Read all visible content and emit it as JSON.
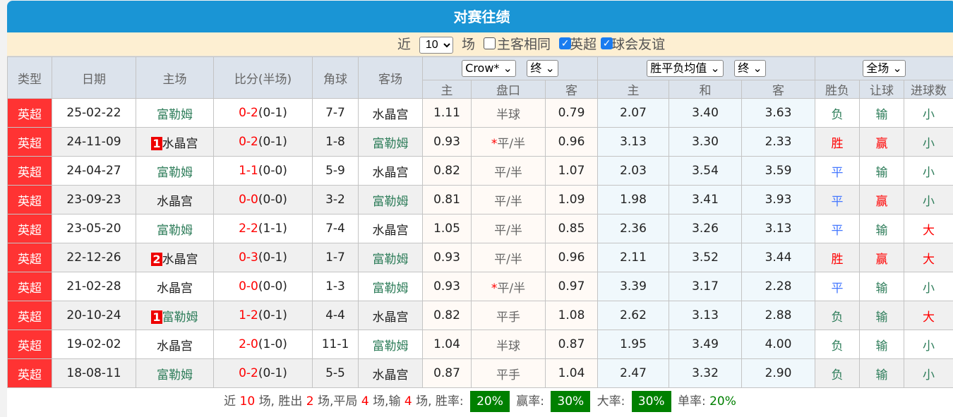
{
  "title": "对赛往绩",
  "filter": {
    "near": "近",
    "count": "10",
    "unit": "场",
    "same_home": "主客相同",
    "same_home_checked": false,
    "league": "英超",
    "league_checked": true,
    "friendly": "球会友谊",
    "friendly_checked": true
  },
  "header": {
    "type": "类型",
    "date": "日期",
    "home": "主场",
    "score": "比分(半场)",
    "corner": "角球",
    "away": "客场",
    "company_select": "Crow*",
    "hc_stage_select": "终",
    "odds_select": "胜平负均值",
    "odds_stage_select": "终",
    "period_select": "全场",
    "hc_home": "主",
    "hc_line": "盘口",
    "hc_away": "客",
    "od_home": "主",
    "od_draw": "和",
    "od_away": "客",
    "res_wl": "胜负",
    "res_hc": "让球",
    "res_goals": "进球数"
  },
  "rows": [
    {
      "type": "英超",
      "date": "25-02-22",
      "home": "富勒姆",
      "home_rank": "",
      "score": "0-2",
      "half": "(0-1)",
      "corner": "7-7",
      "away": "水晶宫",
      "h": "1.11",
      "line": "半球",
      "star": "",
      "a": "0.79",
      "o1": "2.07",
      "ox": "3.40",
      "o2": "3.63",
      "wl": "负",
      "hc": "输",
      "g": "小"
    },
    {
      "type": "英超",
      "date": "24-11-09",
      "home": "水晶宫",
      "home_rank": "1",
      "score": "0-2",
      "half": "(0-1)",
      "corner": "1-8",
      "away": "富勒姆",
      "h": "0.93",
      "line": "平/半",
      "star": "*",
      "a": "0.96",
      "o1": "3.13",
      "ox": "3.30",
      "o2": "2.33",
      "wl": "胜",
      "hc": "赢",
      "g": "小"
    },
    {
      "type": "英超",
      "date": "24-04-27",
      "home": "富勒姆",
      "home_rank": "",
      "score": "1-1",
      "half": "(0-0)",
      "corner": "5-9",
      "away": "水晶宫",
      "h": "0.82",
      "line": "平/半",
      "star": "",
      "a": "1.07",
      "o1": "2.03",
      "ox": "3.54",
      "o2": "3.59",
      "wl": "平",
      "hc": "输",
      "g": "小"
    },
    {
      "type": "英超",
      "date": "23-09-23",
      "home": "水晶宫",
      "home_rank": "",
      "score": "0-0",
      "half": "(0-0)",
      "corner": "3-2",
      "away": "富勒姆",
      "h": "0.81",
      "line": "平/半",
      "star": "",
      "a": "1.09",
      "o1": "1.98",
      "ox": "3.41",
      "o2": "3.93",
      "wl": "平",
      "hc": "赢",
      "g": "小"
    },
    {
      "type": "英超",
      "date": "23-05-20",
      "home": "富勒姆",
      "home_rank": "",
      "score": "2-2",
      "half": "(1-1)",
      "corner": "7-4",
      "away": "水晶宫",
      "h": "1.05",
      "line": "平/半",
      "star": "",
      "a": "0.85",
      "o1": "2.36",
      "ox": "3.26",
      "o2": "3.13",
      "wl": "平",
      "hc": "输",
      "g": "大"
    },
    {
      "type": "英超",
      "date": "22-12-26",
      "home": "水晶宫",
      "home_rank": "2",
      "score": "0-3",
      "half": "(0-1)",
      "corner": "1-7",
      "away": "富勒姆",
      "h": "0.93",
      "line": "平/半",
      "star": "",
      "a": "0.96",
      "o1": "2.11",
      "ox": "3.52",
      "o2": "3.44",
      "wl": "胜",
      "hc": "赢",
      "g": "大"
    },
    {
      "type": "英超",
      "date": "21-02-28",
      "home": "水晶宫",
      "home_rank": "",
      "score": "0-0",
      "half": "(0-0)",
      "corner": "1-3",
      "away": "富勒姆",
      "h": "0.93",
      "line": "平/半",
      "star": "*",
      "a": "0.97",
      "o1": "3.39",
      "ox": "3.17",
      "o2": "2.28",
      "wl": "平",
      "hc": "输",
      "g": "小"
    },
    {
      "type": "英超",
      "date": "20-10-24",
      "home": "富勒姆",
      "home_rank": "1",
      "score": "1-2",
      "half": "(0-1)",
      "corner": "4-4",
      "away": "水晶宫",
      "h": "0.82",
      "line": "平手",
      "star": "",
      "a": "1.08",
      "o1": "2.62",
      "ox": "3.13",
      "o2": "2.88",
      "wl": "负",
      "hc": "输",
      "g": "大"
    },
    {
      "type": "英超",
      "date": "19-02-02",
      "home": "水晶宫",
      "home_rank": "",
      "score": "2-0",
      "half": "(1-0)",
      "corner": "11-1",
      "away": "富勒姆",
      "h": "1.04",
      "line": "半球",
      "star": "",
      "a": "0.87",
      "o1": "1.95",
      "ox": "3.49",
      "o2": "4.00",
      "wl": "负",
      "hc": "输",
      "g": "小"
    },
    {
      "type": "英超",
      "date": "18-08-11",
      "home": "富勒姆",
      "home_rank": "",
      "score": "0-2",
      "half": "(0-1)",
      "corner": "5-5",
      "away": "水晶宫",
      "h": "0.87",
      "line": "平手",
      "star": "",
      "a": "1.04",
      "o1": "2.47",
      "ox": "3.32",
      "o2": "2.90",
      "wl": "负",
      "hc": "输",
      "g": "小"
    }
  ],
  "summary": {
    "p1": "近",
    "n_total": "10",
    "p2": "场, 胜出",
    "n_win": "2",
    "p3": "场,平局",
    "n_draw": "4",
    "p4": "场,输",
    "n_loss": "4",
    "p5": "场, 胜率:",
    "win_rate": "20%",
    "hc_label": "赢率:",
    "hc_rate": "30%",
    "big_label": "大率:",
    "big_rate": "30%",
    "odd_label": "单率:",
    "odd_rate": "20%"
  },
  "colors": {
    "title_bar": "#1a95d5",
    "league_badge": "#ff3333",
    "win": "#ff0000",
    "draw": "#4477ff",
    "loss": "#2e7d5a",
    "rate_box": "#008000"
  }
}
